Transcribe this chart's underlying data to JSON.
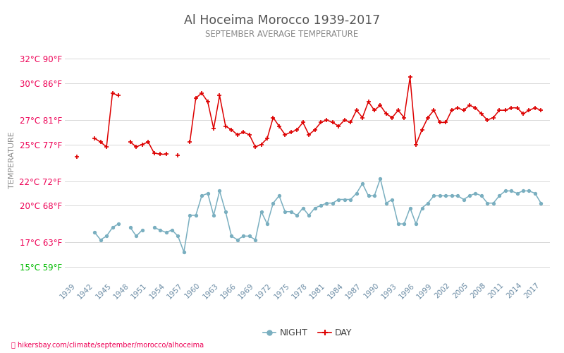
{
  "title": "Al Hoceima Morocco 1939-2017",
  "subtitle": "SEPTEMBER AVERAGE TEMPERATURE",
  "ylabel": "TEMPERATURE",
  "footer": "hikersbay.com/climate/september/morocco/alhoceima",
  "yticks_c": [
    15,
    17,
    20,
    22,
    25,
    27,
    30,
    32
  ],
  "yticks_f": [
    59,
    63,
    68,
    72,
    77,
    81,
    86,
    90
  ],
  "ylim": [
    14.0,
    33.5
  ],
  "years": [
    1939,
    1940,
    1941,
    1942,
    1943,
    1944,
    1945,
    1946,
    1947,
    1948,
    1949,
    1950,
    1951,
    1952,
    1953,
    1954,
    1955,
    1956,
    1957,
    1958,
    1959,
    1960,
    1961,
    1962,
    1963,
    1964,
    1965,
    1966,
    1967,
    1968,
    1969,
    1970,
    1971,
    1972,
    1973,
    1974,
    1975,
    1976,
    1977,
    1978,
    1979,
    1980,
    1981,
    1982,
    1983,
    1984,
    1985,
    1986,
    1987,
    1988,
    1989,
    1990,
    1991,
    1992,
    1993,
    1994,
    1995,
    1996,
    1997,
    1998,
    1999,
    2000,
    2001,
    2002,
    2003,
    2004,
    2005,
    2006,
    2007,
    2008,
    2009,
    2010,
    2011,
    2012,
    2013,
    2014,
    2015,
    2016,
    2017
  ],
  "day_temps": [
    24.0,
    null,
    null,
    25.5,
    25.2,
    24.8,
    29.2,
    29.0,
    null,
    25.2,
    24.8,
    25.0,
    25.2,
    24.3,
    24.2,
    24.2,
    null,
    24.1,
    null,
    25.2,
    28.8,
    29.2,
    28.5,
    26.3,
    29.0,
    26.5,
    26.2,
    25.8,
    26.0,
    25.8,
    24.8,
    25.0,
    25.5,
    27.2,
    26.5,
    25.8,
    26.0,
    26.2,
    26.8,
    25.8,
    26.2,
    26.8,
    27.0,
    26.8,
    26.5,
    27.0,
    26.8,
    27.8,
    27.2,
    28.5,
    27.8,
    28.2,
    27.5,
    27.2,
    27.8,
    27.2,
    30.5,
    25.0,
    26.2,
    27.2,
    27.8,
    26.8,
    26.8,
    27.8,
    28.0,
    27.8,
    28.2,
    28.0,
    27.5,
    27.0,
    27.2,
    27.8,
    27.8,
    28.0,
    28.0,
    27.5,
    27.8,
    28.0,
    27.8
  ],
  "night_temps": [
    null,
    null,
    null,
    17.8,
    17.2,
    17.5,
    18.2,
    18.5,
    null,
    18.2,
    17.5,
    18.0,
    null,
    18.2,
    18.0,
    17.8,
    18.0,
    17.5,
    16.2,
    19.2,
    19.2,
    20.8,
    21.0,
    19.2,
    21.2,
    19.5,
    17.5,
    17.2,
    17.5,
    17.5,
    17.2,
    19.5,
    18.5,
    20.2,
    20.8,
    19.5,
    19.5,
    19.2,
    19.8,
    19.2,
    19.8,
    20.0,
    20.2,
    20.2,
    20.5,
    20.5,
    20.5,
    21.0,
    21.8,
    20.8,
    20.8,
    22.2,
    20.2,
    20.5,
    18.5,
    18.5,
    19.8,
    18.5,
    19.8,
    20.2,
    20.8,
    20.8,
    20.8,
    20.8,
    20.8,
    20.5,
    20.8,
    21.0,
    20.8,
    20.2,
    20.2,
    20.8,
    21.2,
    21.2,
    21.0,
    21.2,
    21.2,
    21.0,
    20.2
  ],
  "day_color": "#dd0000",
  "night_color": "#7aafc0",
  "title_color": "#555555",
  "subtitle_color": "#888888",
  "ylabel_color": "#888888",
  "ytick_color": "#ee0055",
  "ytick_bottom_color": "#00bb00",
  "xtick_color": "#6a8ba4",
  "grid_color": "#d8d8d8",
  "bg_color": "#ffffff",
  "footer_color": "#ee0055",
  "xtick_years": [
    1939,
    1942,
    1945,
    1948,
    1951,
    1954,
    1957,
    1960,
    1963,
    1966,
    1969,
    1972,
    1975,
    1978,
    1981,
    1984,
    1987,
    1990,
    1993,
    1996,
    1999,
    2002,
    2005,
    2008,
    2011,
    2014,
    2017
  ]
}
